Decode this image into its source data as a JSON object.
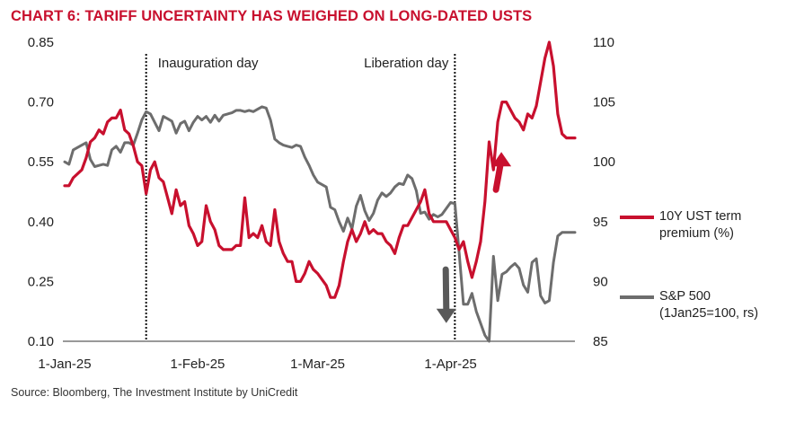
{
  "title": "CHART 6: TARIFF UNCERTAINTY HAS WEIGHED ON LONG-DATED USTS",
  "source": "Source: Bloomberg, The Investment Institute by UniCredit",
  "chart_data": {
    "type": "line",
    "title": "CHART 6: TARIFF UNCERTAINTY HAS WEIGHED ON LONG-DATED USTS",
    "x_axis": {
      "type": "date",
      "ticks": [
        {
          "date": "2025-01-01",
          "label": "1-Jan-25"
        },
        {
          "date": "2025-02-01",
          "label": "1-Feb-25"
        },
        {
          "date": "2025-03-01",
          "label": "1-Mar-25"
        },
        {
          "date": "2025-04-01",
          "label": "1-Apr-25"
        }
      ],
      "range": [
        "2025-01-01",
        "2025-04-30"
      ]
    },
    "y_left": {
      "ticks": [
        "0.10",
        "0.25",
        "0.40",
        "0.55",
        "0.70",
        "0.85"
      ],
      "range": [
        0.1,
        0.85
      ]
    },
    "y_right": {
      "ticks": [
        "85",
        "90",
        "95",
        "100",
        "105",
        "110"
      ],
      "range": [
        85,
        110
      ]
    },
    "grid": false,
    "legend_position": "right",
    "events": [
      {
        "date": "2025-01-20",
        "label": "Inauguration day"
      },
      {
        "date": "2025-04-02",
        "label": "Liberation day"
      }
    ],
    "arrows": [
      {
        "date": "2025-03-31",
        "from": 0.28,
        "to": 0.15,
        "axis": "left",
        "color": "#595959"
      },
      {
        "date": "2025-04-12",
        "from": 0.48,
        "to": 0.57,
        "axis": "left",
        "color": "#c8102e"
      }
    ],
    "series": [
      {
        "name": "10Y UST term premium (%)",
        "color": "#c8102e",
        "axis": "left",
        "points": [
          [
            "2025-01-01",
            0.49
          ],
          [
            "2025-01-02",
            0.49
          ],
          [
            "2025-01-03",
            0.51
          ],
          [
            "2025-01-05",
            0.53
          ],
          [
            "2025-01-06",
            0.56
          ],
          [
            "2025-01-07",
            0.6
          ],
          [
            "2025-01-08",
            0.61
          ],
          [
            "2025-01-09",
            0.63
          ],
          [
            "2025-01-10",
            0.62
          ],
          [
            "2025-01-11",
            0.65
          ],
          [
            "2025-01-12",
            0.66
          ],
          [
            "2025-01-13",
            0.66
          ],
          [
            "2025-01-14",
            0.68
          ],
          [
            "2025-01-15",
            0.63
          ],
          [
            "2025-01-16",
            0.62
          ],
          [
            "2025-01-17",
            0.59
          ],
          [
            "2025-01-18",
            0.55
          ],
          [
            "2025-01-19",
            0.54
          ],
          [
            "2025-01-20",
            0.47
          ],
          [
            "2025-01-21",
            0.53
          ],
          [
            "2025-01-22",
            0.55
          ],
          [
            "2025-01-23",
            0.51
          ],
          [
            "2025-01-24",
            0.5
          ],
          [
            "2025-01-25",
            0.46
          ],
          [
            "2025-01-26",
            0.42
          ],
          [
            "2025-01-27",
            0.48
          ],
          [
            "2025-01-28",
            0.44
          ],
          [
            "2025-01-29",
            0.45
          ],
          [
            "2025-01-30",
            0.39
          ],
          [
            "2025-01-31",
            0.37
          ],
          [
            "2025-02-01",
            0.34
          ],
          [
            "2025-02-02",
            0.35
          ],
          [
            "2025-02-03",
            0.44
          ],
          [
            "2025-02-04",
            0.4
          ],
          [
            "2025-02-05",
            0.38
          ],
          [
            "2025-02-06",
            0.34
          ],
          [
            "2025-02-07",
            0.33
          ],
          [
            "2025-02-08",
            0.33
          ],
          [
            "2025-02-09",
            0.33
          ],
          [
            "2025-02-10",
            0.34
          ],
          [
            "2025-02-11",
            0.34
          ],
          [
            "2025-02-12",
            0.46
          ],
          [
            "2025-02-13",
            0.36
          ],
          [
            "2025-02-14",
            0.37
          ],
          [
            "2025-02-15",
            0.36
          ],
          [
            "2025-02-16",
            0.39
          ],
          [
            "2025-02-17",
            0.35
          ],
          [
            "2025-02-18",
            0.34
          ],
          [
            "2025-02-19",
            0.43
          ],
          [
            "2025-02-20",
            0.35
          ],
          [
            "2025-02-21",
            0.32
          ],
          [
            "2025-02-22",
            0.3
          ],
          [
            "2025-02-23",
            0.3
          ],
          [
            "2025-02-24",
            0.25
          ],
          [
            "2025-02-25",
            0.25
          ],
          [
            "2025-02-26",
            0.27
          ],
          [
            "2025-02-27",
            0.3
          ],
          [
            "2025-02-28",
            0.28
          ],
          [
            "2025-03-01",
            0.27
          ],
          [
            "2025-03-03",
            0.24
          ],
          [
            "2025-03-04",
            0.21
          ],
          [
            "2025-03-05",
            0.21
          ],
          [
            "2025-03-06",
            0.24
          ],
          [
            "2025-03-07",
            0.3
          ],
          [
            "2025-03-08",
            0.35
          ],
          [
            "2025-03-09",
            0.38
          ],
          [
            "2025-03-10",
            0.35
          ],
          [
            "2025-03-11",
            0.37
          ],
          [
            "2025-03-12",
            0.4
          ],
          [
            "2025-03-13",
            0.37
          ],
          [
            "2025-03-14",
            0.38
          ],
          [
            "2025-03-15",
            0.37
          ],
          [
            "2025-03-16",
            0.37
          ],
          [
            "2025-03-17",
            0.35
          ],
          [
            "2025-03-18",
            0.34
          ],
          [
            "2025-03-19",
            0.32
          ],
          [
            "2025-03-20",
            0.36
          ],
          [
            "2025-03-21",
            0.39
          ],
          [
            "2025-03-22",
            0.39
          ],
          [
            "2025-03-23",
            0.41
          ],
          [
            "2025-03-24",
            0.43
          ],
          [
            "2025-03-25",
            0.45
          ],
          [
            "2025-03-26",
            0.48
          ],
          [
            "2025-03-27",
            0.42
          ],
          [
            "2025-03-28",
            0.4
          ],
          [
            "2025-03-29",
            0.4
          ],
          [
            "2025-03-30",
            0.4
          ],
          [
            "2025-03-31",
            0.4
          ],
          [
            "2025-04-01",
            0.38
          ],
          [
            "2025-04-02",
            0.36
          ],
          [
            "2025-04-03",
            0.33
          ],
          [
            "2025-04-04",
            0.35
          ],
          [
            "2025-04-05",
            0.3
          ],
          [
            "2025-04-06",
            0.26
          ],
          [
            "2025-04-07",
            0.3
          ],
          [
            "2025-04-08",
            0.35
          ],
          [
            "2025-04-09",
            0.45
          ],
          [
            "2025-04-10",
            0.6
          ],
          [
            "2025-04-11",
            0.53
          ],
          [
            "2025-04-12",
            0.65
          ],
          [
            "2025-04-13",
            0.7
          ],
          [
            "2025-04-14",
            0.7
          ],
          [
            "2025-04-15",
            0.68
          ],
          [
            "2025-04-16",
            0.66
          ],
          [
            "2025-04-17",
            0.65
          ],
          [
            "2025-04-18",
            0.63
          ],
          [
            "2025-04-19",
            0.67
          ],
          [
            "2025-04-20",
            0.66
          ],
          [
            "2025-04-21",
            0.69
          ],
          [
            "2025-04-22",
            0.75
          ],
          [
            "2025-04-23",
            0.81
          ],
          [
            "2025-04-24",
            0.85
          ],
          [
            "2025-04-25",
            0.79
          ],
          [
            "2025-04-26",
            0.67
          ],
          [
            "2025-04-27",
            0.62
          ],
          [
            "2025-04-28",
            0.61
          ],
          [
            "2025-04-29",
            0.61
          ],
          [
            "2025-04-30",
            0.61
          ]
        ]
      },
      {
        "name": "S&P 500 (1Jan25=100, rs)",
        "color": "#6d6d6d",
        "axis": "right",
        "points": [
          [
            "2025-01-01",
            100.0
          ],
          [
            "2025-01-02",
            99.8
          ],
          [
            "2025-01-03",
            101.0
          ],
          [
            "2025-01-05",
            101.4
          ],
          [
            "2025-01-06",
            101.6
          ],
          [
            "2025-01-07",
            100.2
          ],
          [
            "2025-01-08",
            99.6
          ],
          [
            "2025-01-09",
            99.7
          ],
          [
            "2025-01-10",
            99.8
          ],
          [
            "2025-01-11",
            99.7
          ],
          [
            "2025-01-12",
            101.0
          ],
          [
            "2025-01-13",
            101.3
          ],
          [
            "2025-01-14",
            100.8
          ],
          [
            "2025-01-15",
            101.6
          ],
          [
            "2025-01-16",
            101.6
          ],
          [
            "2025-01-17",
            101.4
          ],
          [
            "2025-01-18",
            102.4
          ],
          [
            "2025-01-19",
            103.5
          ],
          [
            "2025-01-20",
            104.2
          ],
          [
            "2025-01-21",
            104.0
          ],
          [
            "2025-01-22",
            103.3
          ],
          [
            "2025-01-23",
            102.6
          ],
          [
            "2025-01-24",
            103.8
          ],
          [
            "2025-01-25",
            103.6
          ],
          [
            "2025-01-26",
            103.4
          ],
          [
            "2025-01-27",
            102.4
          ],
          [
            "2025-01-28",
            103.2
          ],
          [
            "2025-01-29",
            103.4
          ],
          [
            "2025-01-30",
            102.6
          ],
          [
            "2025-01-31",
            103.3
          ],
          [
            "2025-02-01",
            103.8
          ],
          [
            "2025-02-02",
            103.5
          ],
          [
            "2025-02-03",
            103.8
          ],
          [
            "2025-02-04",
            103.3
          ],
          [
            "2025-02-05",
            103.9
          ],
          [
            "2025-02-06",
            103.4
          ],
          [
            "2025-02-07",
            103.9
          ],
          [
            "2025-02-08",
            104.0
          ],
          [
            "2025-02-09",
            104.1
          ],
          [
            "2025-02-10",
            104.3
          ],
          [
            "2025-02-11",
            104.3
          ],
          [
            "2025-02-12",
            104.2
          ],
          [
            "2025-02-13",
            104.3
          ],
          [
            "2025-02-14",
            104.2
          ],
          [
            "2025-02-15",
            104.4
          ],
          [
            "2025-02-16",
            104.6
          ],
          [
            "2025-02-17",
            104.5
          ],
          [
            "2025-02-18",
            103.5
          ],
          [
            "2025-02-19",
            101.9
          ],
          [
            "2025-02-20",
            101.6
          ],
          [
            "2025-02-21",
            101.4
          ],
          [
            "2025-02-22",
            101.3
          ],
          [
            "2025-02-23",
            101.2
          ],
          [
            "2025-02-24",
            101.4
          ],
          [
            "2025-02-25",
            101.3
          ],
          [
            "2025-02-26",
            100.4
          ],
          [
            "2025-02-27",
            99.7
          ],
          [
            "2025-02-28",
            98.9
          ],
          [
            "2025-03-01",
            98.3
          ],
          [
            "2025-03-03",
            97.9
          ],
          [
            "2025-03-04",
            96.2
          ],
          [
            "2025-03-05",
            96.0
          ],
          [
            "2025-03-06",
            95.0
          ],
          [
            "2025-03-07",
            94.2
          ],
          [
            "2025-03-08",
            95.3
          ],
          [
            "2025-03-09",
            94.4
          ],
          [
            "2025-03-10",
            96.3
          ],
          [
            "2025-03-11",
            97.2
          ],
          [
            "2025-03-12",
            95.9
          ],
          [
            "2025-03-13",
            95.1
          ],
          [
            "2025-03-14",
            95.7
          ],
          [
            "2025-03-15",
            96.8
          ],
          [
            "2025-03-16",
            97.4
          ],
          [
            "2025-03-17",
            97.1
          ],
          [
            "2025-03-18",
            97.4
          ],
          [
            "2025-03-19",
            97.9
          ],
          [
            "2025-03-20",
            98.2
          ],
          [
            "2025-03-21",
            98.1
          ],
          [
            "2025-03-22",
            98.9
          ],
          [
            "2025-03-23",
            98.6
          ],
          [
            "2025-03-24",
            97.6
          ],
          [
            "2025-03-25",
            95.7
          ],
          [
            "2025-03-26",
            95.8
          ],
          [
            "2025-03-27",
            95.2
          ],
          [
            "2025-03-28",
            95.6
          ],
          [
            "2025-03-29",
            95.4
          ],
          [
            "2025-03-30",
            95.6
          ],
          [
            "2025-03-31",
            96.1
          ],
          [
            "2025-04-01",
            96.6
          ],
          [
            "2025-04-02",
            96.5
          ],
          [
            "2025-04-03",
            92.4
          ],
          [
            "2025-04-04",
            88.1
          ],
          [
            "2025-04-05",
            88.1
          ],
          [
            "2025-04-06",
            89.0
          ],
          [
            "2025-04-07",
            87.5
          ],
          [
            "2025-04-08",
            86.5
          ],
          [
            "2025-04-09",
            85.5
          ],
          [
            "2025-04-10",
            85.0
          ],
          [
            "2025-04-11",
            92.1
          ],
          [
            "2025-04-12",
            88.4
          ],
          [
            "2025-04-13",
            90.6
          ],
          [
            "2025-04-14",
            90.8
          ],
          [
            "2025-04-15",
            91.2
          ],
          [
            "2025-04-16",
            91.5
          ],
          [
            "2025-04-17",
            91.1
          ],
          [
            "2025-04-18",
            89.7
          ],
          [
            "2025-04-19",
            89.1
          ],
          [
            "2025-04-20",
            91.6
          ],
          [
            "2025-04-21",
            91.9
          ],
          [
            "2025-04-22",
            88.8
          ],
          [
            "2025-04-23",
            88.2
          ],
          [
            "2025-04-24",
            88.4
          ],
          [
            "2025-04-25",
            91.6
          ],
          [
            "2025-04-26",
            93.8
          ],
          [
            "2025-04-27",
            94.1
          ],
          [
            "2025-04-28",
            94.1
          ],
          [
            "2025-04-29",
            94.1
          ],
          [
            "2025-04-30",
            94.1
          ]
        ]
      }
    ]
  }
}
